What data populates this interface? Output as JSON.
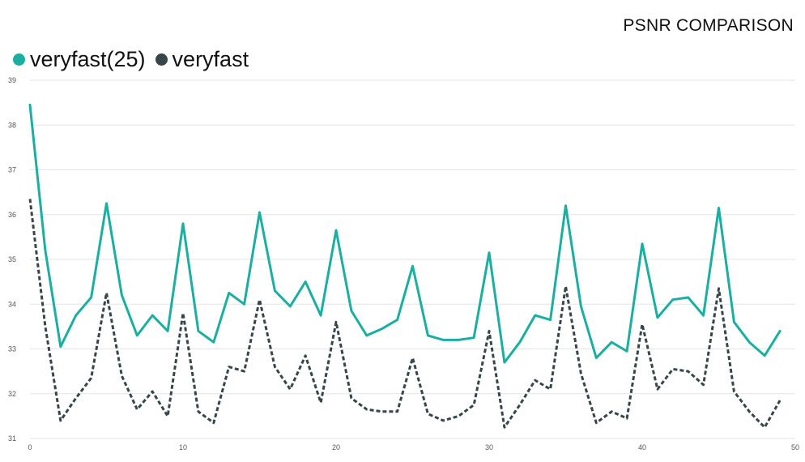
{
  "chart_data": {
    "type": "line",
    "title": "PSNR COMPARISON",
    "xlabel": "",
    "ylabel": "",
    "xlim": [
      0,
      50
    ],
    "ylim": [
      31,
      39
    ],
    "xticks": [
      0,
      10,
      20,
      30,
      40,
      50
    ],
    "yticks": [
      31,
      32,
      33,
      34,
      35,
      36,
      37,
      38,
      39
    ],
    "grid": true,
    "legend_position": "top-left",
    "x": [
      0,
      1,
      2,
      3,
      4,
      5,
      6,
      7,
      8,
      9,
      10,
      11,
      12,
      13,
      14,
      15,
      16,
      17,
      18,
      19,
      20,
      21,
      22,
      23,
      24,
      25,
      26,
      27,
      28,
      29,
      30,
      31,
      32,
      33,
      34,
      35,
      36,
      37,
      38,
      39,
      40,
      41,
      42,
      43,
      44,
      45,
      46,
      47,
      48,
      49
    ],
    "series": [
      {
        "name": "veryfast(25)",
        "color": "#1aafa0",
        "dash": "solid",
        "values": [
          38.45,
          35.2,
          33.05,
          33.75,
          34.15,
          36.25,
          34.2,
          33.3,
          33.75,
          33.4,
          35.8,
          33.4,
          33.15,
          34.25,
          34.0,
          36.05,
          34.3,
          33.95,
          34.5,
          33.75,
          35.65,
          33.85,
          33.3,
          33.45,
          33.65,
          34.85,
          33.3,
          33.2,
          33.2,
          33.25,
          35.15,
          32.7,
          33.15,
          33.75,
          33.65,
          36.2,
          33.95,
          32.8,
          33.15,
          32.95,
          35.35,
          33.7,
          34.1,
          34.15,
          33.75,
          36.15,
          33.6,
          33.15,
          32.85,
          33.4
        ]
      },
      {
        "name": "veryfast",
        "color": "#374649",
        "dash": "dashed",
        "values": [
          36.35,
          33.5,
          31.4,
          31.9,
          32.35,
          34.25,
          32.4,
          31.65,
          32.05,
          31.5,
          33.8,
          31.6,
          31.35,
          32.6,
          32.5,
          34.1,
          32.6,
          32.1,
          32.85,
          31.8,
          33.6,
          31.9,
          31.65,
          31.6,
          31.6,
          32.8,
          31.55,
          31.4,
          31.5,
          31.75,
          33.4,
          31.25,
          31.75,
          32.3,
          32.1,
          34.4,
          32.45,
          31.35,
          31.6,
          31.45,
          33.55,
          32.1,
          32.55,
          32.5,
          32.2,
          34.35,
          32.05,
          31.6,
          31.25,
          31.85
        ]
      }
    ]
  }
}
